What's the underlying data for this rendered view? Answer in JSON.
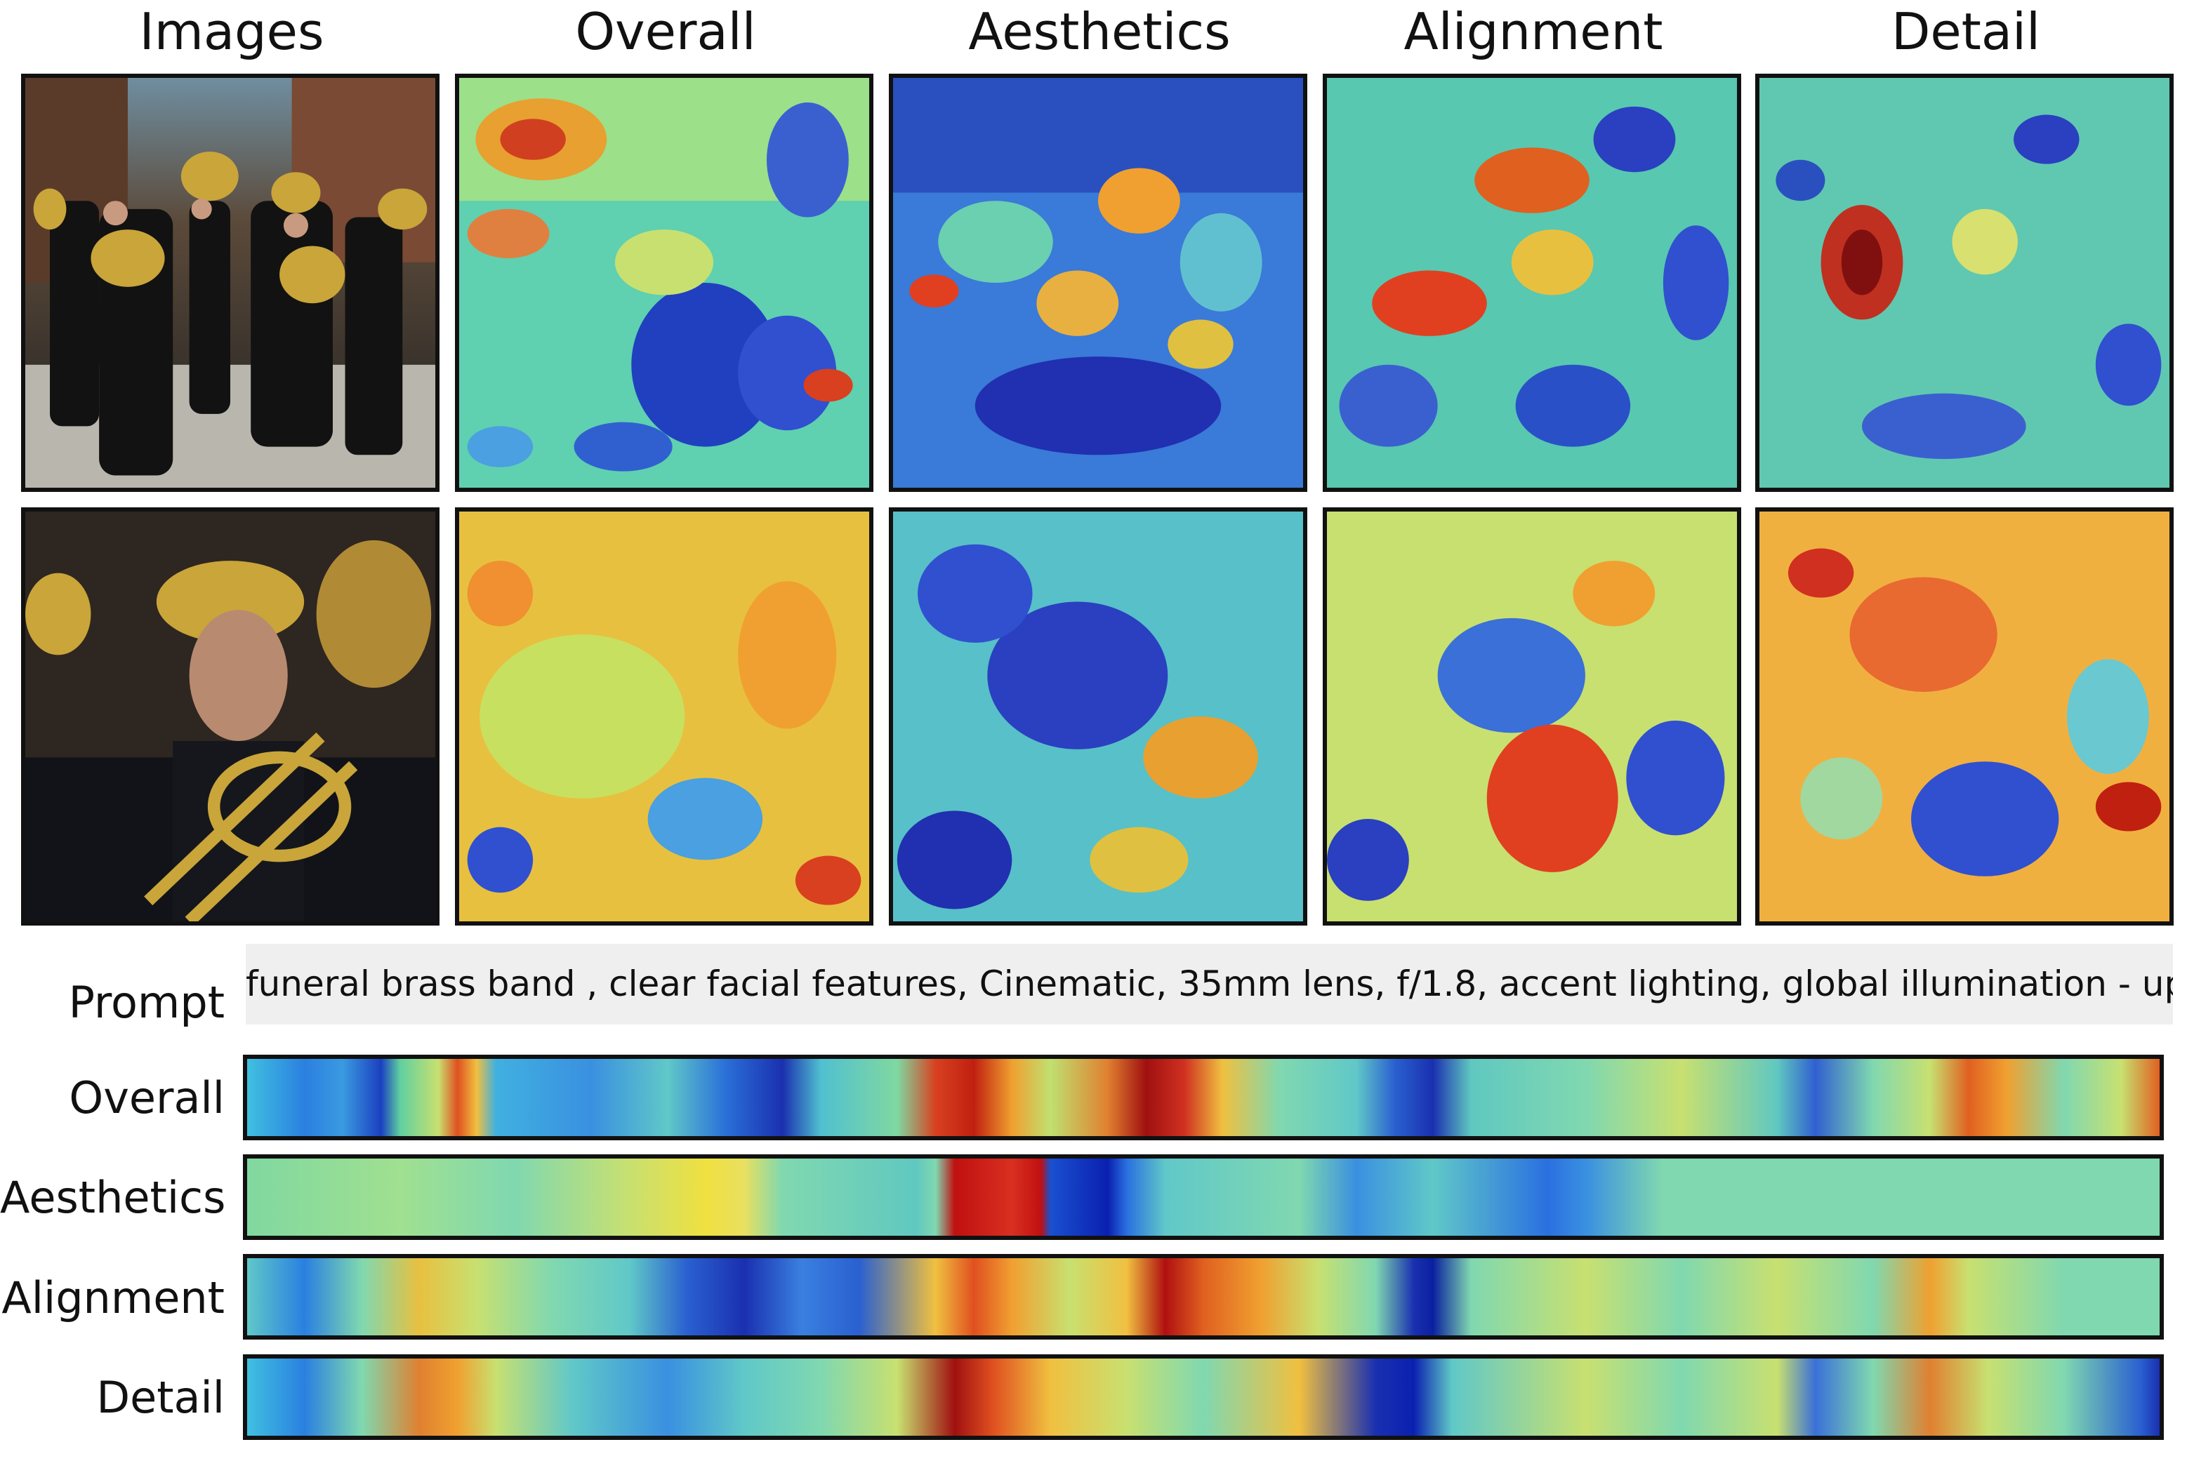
{
  "columns": [
    "Images",
    "Overall",
    "Aesthetics",
    "Alignment",
    "Detail"
  ],
  "prompt": {
    "label": "Prompt",
    "text": "funeral brass band , clear facial features, Cinematic, 35mm lens, f/1.8, accent lighting, global illumination - uplight"
  },
  "strips": {
    "labels": [
      "Overall",
      "Aesthetics",
      "Alignment",
      "Detail"
    ],
    "colormap": "jet"
  },
  "rows": [
    {
      "image": "brass-band-street-photo"
    },
    {
      "image": "tuba-player-portrait-photo"
    }
  ]
}
